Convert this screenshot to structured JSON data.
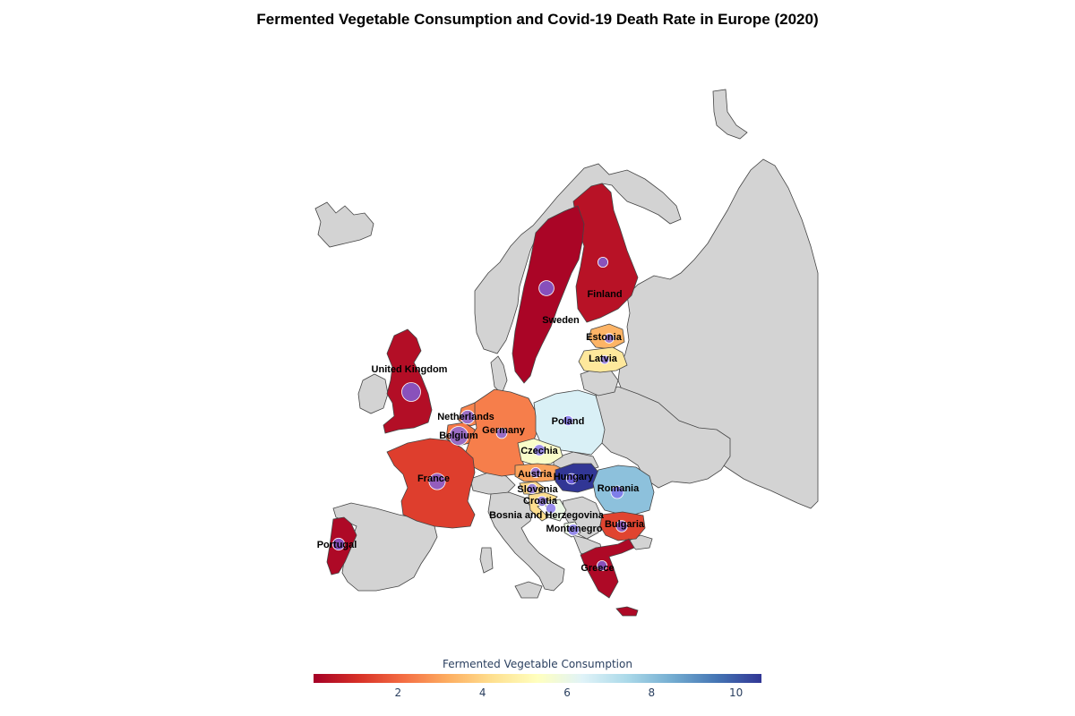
{
  "title": "Fermented Vegetable Consumption and Covid-19 Death Rate in Europe (2020)",
  "colorbar": {
    "title": "Fermented Vegetable Consumption",
    "ticks": [
      "2",
      "4",
      "6",
      "8",
      "10"
    ],
    "range": [
      0,
      10.6
    ],
    "colorscale": "RdYlBu",
    "stops": [
      "#a50026",
      "#d73027",
      "#f46d43",
      "#fdae61",
      "#fee090",
      "#ffffbf",
      "#e0f3f8",
      "#abd9e9",
      "#74add1",
      "#4575b4",
      "#313695"
    ]
  },
  "colors": {
    "other_country_fill": "#d3d3d3",
    "border": "#444444",
    "bubble": "#7b68ee"
  },
  "chart_data": {
    "type": "choropleth-with-bubbles",
    "title": "Fermented Vegetable Consumption and Covid-19 Death Rate in Europe (2020)",
    "color_metric": "Fermented Vegetable Consumption",
    "size_metric": "Covid-19 Death Rate",
    "countries": [
      {
        "name": "Finland",
        "fermented_veg": 0.4,
        "death_rate_rel": 0.3
      },
      {
        "name": "Sweden",
        "fermented_veg": 0.1,
        "death_rate_rel": 0.7
      },
      {
        "name": "Estonia",
        "fermented_veg": 3.3,
        "death_rate_rel": 0.25
      },
      {
        "name": "Latvia",
        "fermented_veg": 4.5,
        "death_rate_rel": 0.2
      },
      {
        "name": "United Kingdom",
        "fermented_veg": 0.3,
        "death_rate_rel": 1.0
      },
      {
        "name": "Netherlands",
        "fermented_veg": 2.5,
        "death_rate_rel": 0.6
      },
      {
        "name": "Belgium",
        "fermented_veg": 2.3,
        "death_rate_rel": 1.0
      },
      {
        "name": "Germany",
        "fermented_veg": 2.4,
        "death_rate_rel": 0.35
      },
      {
        "name": "Poland",
        "fermented_veg": 6.5,
        "death_rate_rel": 0.3
      },
      {
        "name": "Czechia",
        "fermented_veg": 5.5,
        "death_rate_rel": 0.4
      },
      {
        "name": "France",
        "fermented_veg": 1.3,
        "death_rate_rel": 0.8
      },
      {
        "name": "Austria",
        "fermented_veg": 3.0,
        "death_rate_rel": 0.3
      },
      {
        "name": "Slovenia",
        "fermented_veg": 4.0,
        "death_rate_rel": 0.3
      },
      {
        "name": "Hungary",
        "fermented_veg": 10.6,
        "death_rate_rel": 0.35
      },
      {
        "name": "Romania",
        "fermented_veg": 8.0,
        "death_rate_rel": 0.5
      },
      {
        "name": "Croatia",
        "fermented_veg": 4.2,
        "death_rate_rel": 0.3
      },
      {
        "name": "Bosnia and Herzegovina",
        "fermented_veg": 6.0,
        "death_rate_rel": 0.3
      },
      {
        "name": "Montenegro",
        "fermented_veg": 6.0,
        "death_rate_rel": 0.4
      },
      {
        "name": "Bulgaria",
        "fermented_veg": 1.4,
        "death_rate_rel": 0.4
      },
      {
        "name": "Greece",
        "fermented_veg": 0.2,
        "death_rate_rel": 0.3
      },
      {
        "name": "Portugal",
        "fermented_veg": 0.2,
        "death_rate_rel": 0.45
      }
    ]
  }
}
